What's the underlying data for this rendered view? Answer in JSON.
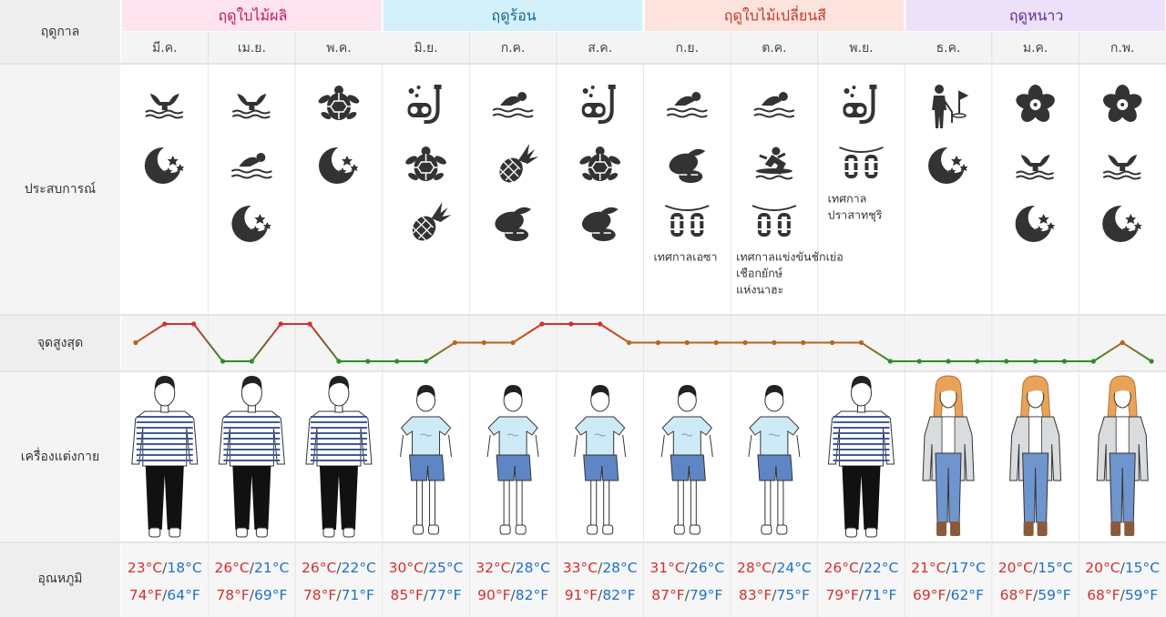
{
  "row_labels": {
    "season": "ฤดูกาล",
    "experience": "ประสบการณ์",
    "peak": "จุดสูงสุด",
    "clothing": "เครื่องแต่งกาย",
    "temperature": "อุณหภูมิ"
  },
  "seasons": [
    {
      "name": "ฤดูใบไม้ผลิ",
      "color": "#c2185b",
      "background": "#fde4ef"
    },
    {
      "name": "ฤดูร้อน",
      "color": "#16628f",
      "background": "#d3f1fb"
    },
    {
      "name": "ฤดูใบไม้เปลี่ยนสี",
      "color": "#c0392b",
      "background": "#fde3dd"
    },
    {
      "name": "ฤดูหนาว",
      "color": "#5b2c8f",
      "background": "#ede1fa"
    }
  ],
  "months": [
    "มี.ค.",
    "เม.ย.",
    "พ.ค.",
    "มิ.ย.",
    "ก.ค.",
    "ส.ค.",
    "ก.ย.",
    "ต.ค.",
    "พ.ย.",
    "ธ.ค.",
    "ม.ค.",
    "ก.พ."
  ],
  "experience_labels": [
    null,
    null,
    null,
    null,
    null,
    null,
    [
      "เทศกาลเอซา"
    ],
    [
      "เทศกาลแข่งขันชักเย่อ",
      "เชือกยักษ์",
      "แห่งนาฮะ"
    ],
    [
      "เทศกาล",
      "ปราสาทชุริ"
    ],
    null,
    null,
    null
  ],
  "peak": {
    "levels": [
      2,
      3,
      3,
      1,
      1,
      3,
      3,
      1,
      1,
      1,
      1,
      2,
      2,
      2,
      3,
      3,
      3,
      2,
      2,
      2,
      2,
      2,
      2,
      2,
      2,
      2,
      1,
      1,
      1,
      1,
      1,
      1,
      1,
      1,
      2,
      1
    ],
    "colors": {
      "1": "#2e8b2e",
      "2": "#b8651a",
      "3": "#d32f2f"
    }
  },
  "separator": "/",
  "temperatures": [
    {
      "high_c": "23°C",
      "low_c": "18°C",
      "high_f": "74°F",
      "low_f": "64°F"
    },
    {
      "high_c": "26°C",
      "low_c": "21°C",
      "high_f": "78°F",
      "low_f": "69°F"
    },
    {
      "high_c": "26°C",
      "low_c": "22°C",
      "high_f": "78°F",
      "low_f": "71°F"
    },
    {
      "high_c": "30°C",
      "low_c": "25°C",
      "high_f": "85°F",
      "low_f": "77°F"
    },
    {
      "high_c": "32°C",
      "low_c": "28°C",
      "high_f": "90°F",
      "low_f": "82°F"
    },
    {
      "high_c": "33°C",
      "low_c": "28°C",
      "high_f": "91°F",
      "low_f": "82°F"
    },
    {
      "high_c": "31°C",
      "low_c": "26°C",
      "high_f": "87°F",
      "low_f": "79°F"
    },
    {
      "high_c": "28°C",
      "low_c": "24°C",
      "high_f": "83°F",
      "low_f": "75°F"
    },
    {
      "high_c": "26°C",
      "low_c": "22°C",
      "high_f": "79°F",
      "low_f": "71°F"
    },
    {
      "high_c": "21°C",
      "low_c": "17°C",
      "high_f": "69°F",
      "low_f": "62°F"
    },
    {
      "high_c": "20°C",
      "low_c": "15°C",
      "high_f": "68°F",
      "low_f": "59°F"
    },
    {
      "high_c": "20°C",
      "low_c": "15°C",
      "high_f": "68°F",
      "low_f": "59°F"
    }
  ]
}
